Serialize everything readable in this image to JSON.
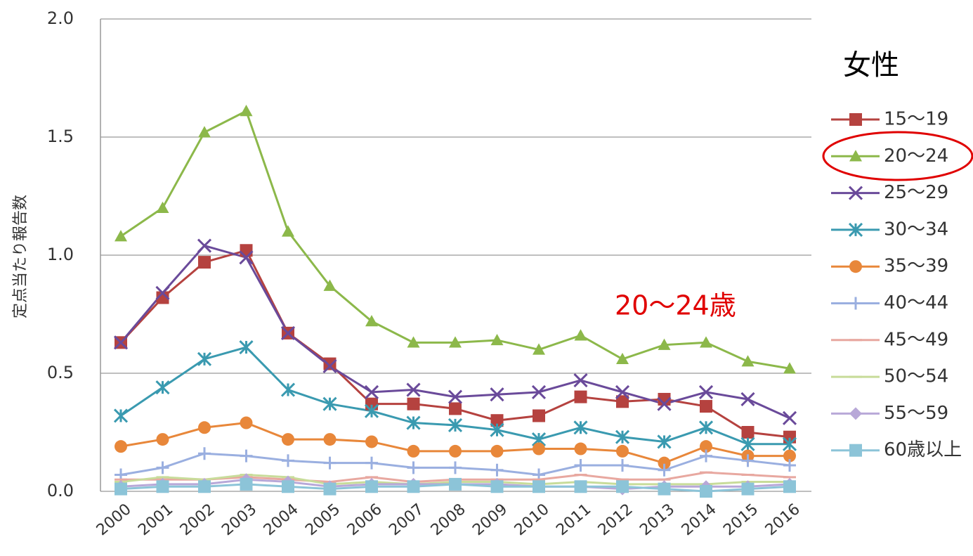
{
  "chart_data": {
    "type": "line",
    "y_label": "定点当たり報告数",
    "legend_title": "女性",
    "annotation": "20〜24歳",
    "categories": [
      "2000",
      "2001",
      "2002",
      "2003",
      "2004",
      "2005",
      "2006",
      "2007",
      "2008",
      "2009",
      "2010",
      "2011",
      "2012",
      "2013",
      "2014",
      "2015",
      "2016"
    ],
    "ylim": [
      0,
      2
    ],
    "yticks": [
      {
        "value": 0,
        "label": "0.0"
      },
      0.5,
      {
        "value": 1,
        "label": "1.0"
      },
      1.5,
      {
        "value": 2,
        "label": "2.0"
      }
    ],
    "grid": true,
    "legend": "right",
    "series": [
      {
        "name": "15〜19",
        "color": "#b5423f",
        "marker": "square",
        "values": [
          0.63,
          0.82,
          0.97,
          1.02,
          0.67,
          0.54,
          0.37,
          0.37,
          0.35,
          0.3,
          0.32,
          0.4,
          0.38,
          0.39,
          0.36,
          0.25,
          0.23
        ]
      },
      {
        "name": "20〜24",
        "color": "#8cb84a",
        "marker": "triangle",
        "values": [
          1.08,
          1.2,
          1.52,
          1.61,
          1.1,
          0.87,
          0.72,
          0.63,
          0.63,
          0.64,
          0.6,
          0.66,
          0.56,
          0.62,
          0.63,
          0.55,
          0.52
        ]
      },
      {
        "name": "25〜29",
        "color": "#6a4a9a",
        "marker": "x",
        "values": [
          0.63,
          0.84,
          1.04,
          0.99,
          0.67,
          0.53,
          0.42,
          0.43,
          0.4,
          0.41,
          0.42,
          0.47,
          0.42,
          0.37,
          0.42,
          0.39,
          0.31
        ]
      },
      {
        "name": "30〜34",
        "color": "#3a9ab0",
        "marker": "star",
        "values": [
          0.32,
          0.44,
          0.56,
          0.61,
          0.43,
          0.37,
          0.34,
          0.29,
          0.28,
          0.26,
          0.22,
          0.27,
          0.23,
          0.21,
          0.27,
          0.2,
          0.2
        ]
      },
      {
        "name": "35〜39",
        "color": "#e8873a",
        "marker": "circle",
        "values": [
          0.19,
          0.22,
          0.27,
          0.29,
          0.22,
          0.22,
          0.21,
          0.17,
          0.17,
          0.17,
          0.18,
          0.18,
          0.17,
          0.12,
          0.19,
          0.15,
          0.15
        ]
      },
      {
        "name": "40〜44",
        "color": "#9aafe0",
        "marker": "plus",
        "values": [
          0.07,
          0.1,
          0.16,
          0.15,
          0.13,
          0.12,
          0.12,
          0.1,
          0.1,
          0.09,
          0.07,
          0.11,
          0.11,
          0.09,
          0.15,
          0.13,
          0.11
        ]
      },
      {
        "name": "45〜49",
        "color": "#e8a8a0",
        "marker": "dash",
        "values": [
          0.05,
          0.05,
          0.05,
          0.06,
          0.05,
          0.04,
          0.06,
          0.04,
          0.05,
          0.05,
          0.05,
          0.07,
          0.05,
          0.05,
          0.08,
          0.07,
          0.06
        ]
      },
      {
        "name": "50〜54",
        "color": "#c8dc9a",
        "marker": "dash",
        "values": [
          0.04,
          0.06,
          0.05,
          0.07,
          0.06,
          0.03,
          0.04,
          0.03,
          0.04,
          0.04,
          0.03,
          0.04,
          0.03,
          0.03,
          0.03,
          0.04,
          0.04
        ]
      },
      {
        "name": "55〜59",
        "color": "#b8a8d8",
        "marker": "diamond",
        "values": [
          0.02,
          0.03,
          0.03,
          0.05,
          0.04,
          0.02,
          0.03,
          0.03,
          0.03,
          0.03,
          0.02,
          0.02,
          0.01,
          0.02,
          0.02,
          0.02,
          0.03
        ]
      },
      {
        "name": "60歳以上",
        "color": "#8cc4d8",
        "marker": "square",
        "values": [
          0.01,
          0.02,
          0.02,
          0.03,
          0.02,
          0.01,
          0.02,
          0.02,
          0.03,
          0.02,
          0.02,
          0.02,
          0.02,
          0.01,
          0.0,
          0.01,
          0.02
        ]
      }
    ]
  }
}
